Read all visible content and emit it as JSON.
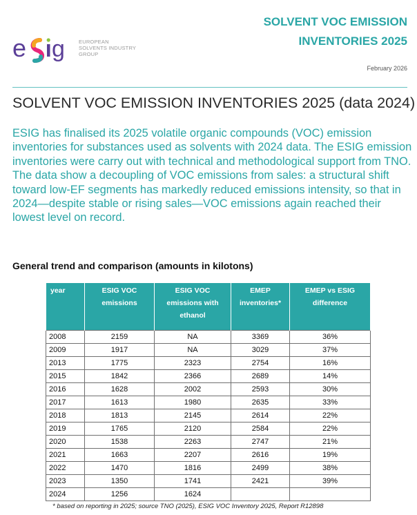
{
  "logo": {
    "wordmark": "eSig",
    "subtitle_lines": [
      "EUROPEAN",
      "SOLVENTS INDUSTRY",
      "GROUP"
    ],
    "colors": [
      "#e8277b",
      "#f5a623",
      "#8cc63f",
      "#2aa6a6",
      "#5b3f98"
    ]
  },
  "header": {
    "title_lines": [
      "SOLVENT VOC EMISSION",
      "INVENTORIES 2025"
    ],
    "date": "February 2026",
    "accent_color": "#2aa6a6"
  },
  "heading": "SOLVENT VOC EMISSION INVENTORIES 2025 (data 2024)",
  "intro": [
    "ESIG has finalised its 2025 volatile organic compounds (VOC) emission inventories for substances used as solvents with 2024 data. The ESIG emission inventories were carry out with technical and methodological support from TNO.",
    "The data show a decoupling of VOC emissions from sales: a structural shift toward low-EF segments has markedly reduced emissions intensity, so that in 2024—despite stable or rising sales—VOC emissions again reached their lowest level on record."
  ],
  "subheading": "General trend and comparison (amounts in kilotons)",
  "table": {
    "headers": [
      "year",
      "ESIG VOC emissions",
      "ESIG VOC emissions with ethanol",
      "EMEP inventories*",
      "EMEP vs ESIG difference"
    ],
    "rows": [
      [
        "2008",
        "2159",
        "NA",
        "3369",
        "36%"
      ],
      [
        "2009",
        "1917",
        "NA",
        "3029",
        "37%"
      ],
      [
        "2013",
        "1775",
        "2323",
        "2754",
        "16%"
      ],
      [
        "2015",
        "1842",
        "2366",
        "2689",
        "14%"
      ],
      [
        "2016",
        "1628",
        "2002",
        "2593",
        "30%"
      ],
      [
        "2017",
        "1613",
        "1980",
        "2635",
        "33%"
      ],
      [
        "2018",
        "1813",
        "2145",
        "2614",
        "22%"
      ],
      [
        "2019",
        "1765",
        "2120",
        "2584",
        "22%"
      ],
      [
        "2020",
        "1538",
        "2263",
        "2747",
        "21%"
      ],
      [
        "2021",
        "1663",
        "2207",
        "2616",
        "19%"
      ],
      [
        "2022",
        "1470",
        "1816",
        "2499",
        "38%"
      ],
      [
        "2023",
        "1350",
        "1741",
        "2421",
        "39%"
      ],
      [
        "2024",
        "1256",
        "1624",
        "",
        ""
      ]
    ]
  },
  "footnote": "* based on reporting in 2025; source TNO (2025), ESIG VOC Inventory 2025, Report R12898"
}
